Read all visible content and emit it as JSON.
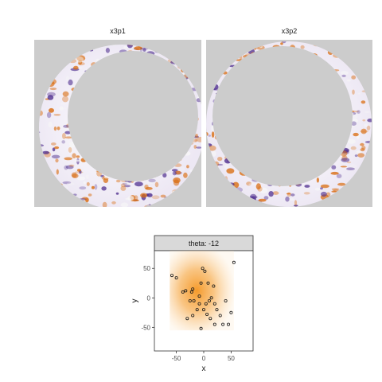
{
  "top_panels": [
    {
      "title": "x3p1",
      "colors": {
        "background": "#cccccc",
        "low": "#4b2a8c",
        "mid": "#f7f7f7",
        "high": "#d96a0b"
      }
    },
    {
      "title": "x3p2",
      "colors": {
        "background": "#cccccc",
        "low": "#4b2a8c",
        "mid": "#f7f7f7",
        "high": "#d96a0b"
      }
    }
  ],
  "chart_data": {
    "type": "scatter",
    "facet_label": "theta: -12",
    "xlabel": "x",
    "ylabel": "y",
    "xlim": [
      -90,
      90
    ],
    "ylim": [
      -90,
      80
    ],
    "x_ticks": [
      -50,
      0,
      50
    ],
    "y_ticks": [
      -50,
      0,
      50
    ],
    "grid": false,
    "density_color": "#f59a2a",
    "points": [
      [
        -58,
        38
      ],
      [
        -50,
        34
      ],
      [
        -38,
        10
      ],
      [
        -33,
        12
      ],
      [
        -25,
        -5
      ],
      [
        -22,
        10
      ],
      [
        -20,
        15
      ],
      [
        -18,
        -5
      ],
      [
        -12,
        -20
      ],
      [
        -8,
        3
      ],
      [
        -8,
        -10
      ],
      [
        -5,
        25
      ],
      [
        -2,
        50
      ],
      [
        0,
        -20
      ],
      [
        2,
        45
      ],
      [
        4,
        -10
      ],
      [
        6,
        -28
      ],
      [
        8,
        25
      ],
      [
        10,
        -5
      ],
      [
        12,
        -35
      ],
      [
        14,
        0
      ],
      [
        18,
        20
      ],
      [
        20,
        -10
      ],
      [
        24,
        -20
      ],
      [
        30,
        -30
      ],
      [
        35,
        -45
      ],
      [
        40,
        -5
      ],
      [
        45,
        -45
      ],
      [
        50,
        -25
      ],
      [
        55,
        60
      ],
      [
        -30,
        -35
      ],
      [
        -20,
        -30
      ],
      [
        -5,
        -52
      ],
      [
        20,
        -45
      ]
    ]
  }
}
